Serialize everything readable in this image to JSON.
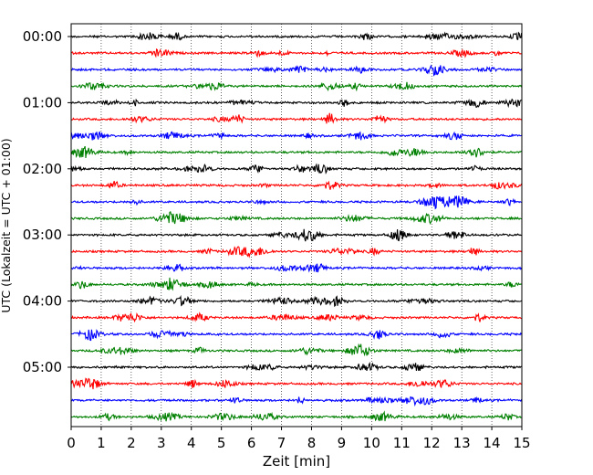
{
  "chart_data": {
    "type": "line",
    "subtype": "helicorder",
    "title": "",
    "xlabel": "Zeit  [min]",
    "ylabel": "UTC (Lokalzeit = UTC + 01:00)",
    "xlim": [
      0,
      15
    ],
    "x_ticks": [
      "0",
      "1",
      "2",
      "3",
      "4",
      "5",
      "6",
      "7",
      "8",
      "9",
      "10",
      "11",
      "12",
      "13",
      "14",
      "15"
    ],
    "row_labels": [
      "00:00",
      "",
      "",
      "",
      "01:00",
      "",
      "",
      "",
      "02:00",
      "",
      "",
      "",
      "03:00",
      "",
      "",
      "",
      "04:00",
      "",
      "",
      "",
      "05:00",
      "",
      "",
      ""
    ],
    "row_colors": [
      "#000000",
      "#ff0000",
      "#0000ff",
      "#008000"
    ],
    "rows_count": 24,
    "minutes_per_row": 15,
    "vertical_grid": "dotted",
    "legend": "none"
  }
}
